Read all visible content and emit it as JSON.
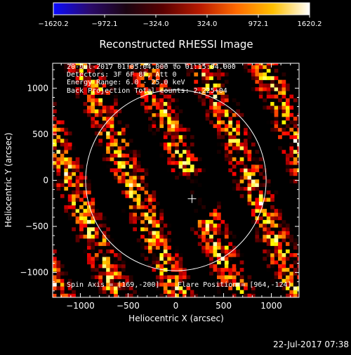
{
  "colors": {
    "background": "#000000",
    "foreground": "#ffffff",
    "colorbar_stops": [
      "#0b0bff",
      "#2a0a6a",
      "#1a0410",
      "#5a0000",
      "#b81a00",
      "#ff6a00",
      "#ffc000",
      "#ffffff"
    ]
  },
  "footer": {
    "timestamp": "22-Jul-2017 07:38"
  },
  "chart_data": {
    "type": "heatmap",
    "title": "Reconstructed RHESSI Image",
    "xlabel": "Heliocentric X (arcsec)",
    "ylabel": "Heliocentric Y (arcsec)",
    "xlim": [
      -1290,
      1290
    ],
    "ylim": [
      -1270,
      1270
    ],
    "x_ticks": [
      -1000,
      -500,
      0,
      500,
      1000
    ],
    "x_tick_labels": [
      "−1000",
      "−500",
      "0",
      "500",
      "1000"
    ],
    "y_ticks": [
      -1000,
      -500,
      0,
      500,
      1000
    ],
    "y_tick_labels": [
      "−1000",
      "−500",
      "0",
      "500",
      "1000"
    ],
    "colorbar": {
      "range": [
        -1620.2,
        1620.2
      ],
      "ticks": [
        -1620.2,
        -972.1,
        -324.0,
        324.0,
        972.1,
        1620.2
      ],
      "tick_labels": [
        "−1620.2",
        "−972.1",
        "−324.0",
        "324.0",
        "972.1",
        "1620.2"
      ]
    },
    "annotations": {
      "time_range": "20-Jul-2017 01:05:04.000 to 01:15:04.000",
      "detectors": "Detectors: 3F 6F 8F, Att 0",
      "energy_range": "Energy Range: 6.0 - 25.0 keV",
      "method_counts": "Back Projection    Total counts: 2.225+04",
      "spin_axis": "Spin Axis = [169,-200]",
      "flare_position": "Flare Position = [964,-124]"
    },
    "solar_disk": {
      "center": [
        0,
        0
      ],
      "radius": 945
    },
    "spin_axis_marker": [
      169,
      -200
    ]
  }
}
